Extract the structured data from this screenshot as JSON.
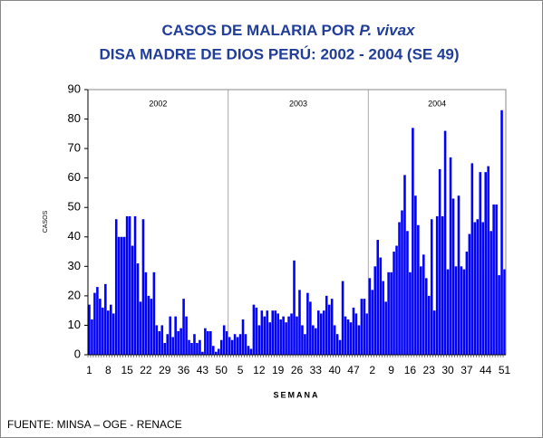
{
  "chart_data": {
    "type": "bar",
    "title": {
      "line1": "CASOS DE MALARIA POR",
      "species": "P. vivax",
      "line2": "DISA MADRE DE DIOS PERÚ: 2002 - 2004 (SE 49)"
    },
    "ylabel": "CASOS",
    "xlabel": "SEMANA",
    "source": "FUENTE: MINSA – OGE - RENACE",
    "color": "#0000ff",
    "ylim": [
      0,
      90
    ],
    "yticks": [
      0,
      10,
      20,
      30,
      40,
      50,
      60,
      70,
      80,
      90
    ],
    "groups": [
      {
        "name": "2002",
        "categories": [
          "1",
          null,
          null,
          null,
          null,
          null,
          null,
          "8",
          null,
          null,
          null,
          null,
          null,
          null,
          "15",
          null,
          null,
          null,
          null,
          null,
          null,
          "22",
          null,
          null,
          null,
          null,
          null,
          null,
          "29",
          null,
          null,
          null,
          null,
          null,
          null,
          "36",
          null,
          null,
          null,
          null,
          null,
          null,
          "43",
          null,
          null,
          null,
          null,
          null,
          null,
          "50",
          null,
          null
        ],
        "values": [
          17,
          12,
          21,
          23,
          19,
          16,
          24,
          15,
          17,
          14,
          46,
          40,
          40,
          40,
          47,
          47,
          37,
          47,
          31,
          18,
          46,
          28,
          20,
          19,
          28,
          10,
          8,
          10,
          4,
          7,
          13,
          6,
          13,
          8,
          9,
          19,
          13,
          5,
          4,
          7,
          4,
          5,
          1,
          9,
          8,
          8,
          3,
          1,
          2,
          5,
          10,
          8
        ]
      },
      {
        "name": "2003",
        "categories": [
          null,
          null,
          null,
          null,
          "5",
          null,
          null,
          null,
          null,
          null,
          null,
          "12",
          null,
          null,
          null,
          null,
          null,
          null,
          "19",
          null,
          null,
          null,
          null,
          null,
          null,
          "26",
          null,
          null,
          null,
          null,
          null,
          null,
          "33",
          null,
          null,
          null,
          null,
          null,
          null,
          "40",
          null,
          null,
          null,
          null,
          null,
          null,
          "47",
          null,
          null,
          null,
          null,
          null
        ],
        "values": [
          6,
          5,
          7,
          6,
          7,
          12,
          7,
          3,
          2,
          17,
          16,
          10,
          15,
          13,
          15,
          11,
          15,
          15,
          14,
          12,
          13,
          11,
          13,
          14,
          32,
          13,
          22,
          10,
          7,
          21,
          18,
          10,
          9,
          15,
          14,
          15,
          20,
          17,
          19,
          10,
          7,
          5,
          25,
          13,
          12,
          11,
          16,
          14,
          10,
          19,
          19,
          14
        ]
      },
      {
        "name": "2004",
        "categories": [
          null,
          "2",
          null,
          null,
          null,
          null,
          null,
          null,
          "9",
          null,
          null,
          null,
          null,
          null,
          null,
          "16",
          null,
          null,
          null,
          null,
          null,
          null,
          "23",
          null,
          null,
          null,
          null,
          null,
          null,
          "30",
          null,
          null,
          null,
          null,
          null,
          null,
          "37",
          null,
          null,
          null,
          null,
          null,
          null,
          "44",
          null,
          null,
          null,
          null,
          null,
          null,
          "51"
        ],
        "values": [
          26,
          22,
          30,
          39,
          33,
          25,
          18,
          28,
          28,
          35,
          37,
          45,
          49,
          61,
          42,
          28,
          77,
          54,
          44,
          30,
          34,
          26,
          20,
          46,
          15,
          47,
          63,
          47,
          76,
          29,
          67,
          53,
          30,
          54,
          30,
          29,
          35,
          41,
          65,
          45,
          46,
          62,
          45,
          62,
          64,
          42,
          51,
          51,
          27,
          83,
          29
        ]
      }
    ]
  }
}
